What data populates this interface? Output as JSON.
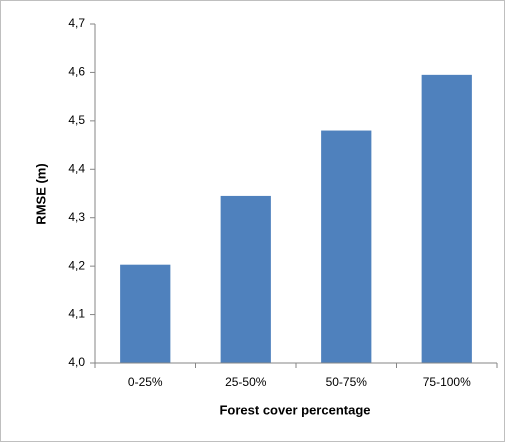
{
  "chart_data": {
    "type": "bar",
    "x_label": "Forest cover percentage",
    "y_label": "RMSE (m)",
    "categories": [
      "0-25%",
      "25-50%",
      "50-75%",
      "75-100%"
    ],
    "values": [
      4.203,
      4.345,
      4.48,
      4.595
    ],
    "color": "#4f81bd",
    "ylim": [
      4.0,
      4.7
    ],
    "yticks": [
      {
        "value": 4.0,
        "label": "4,0"
      },
      {
        "value": 4.1,
        "label": "4,1"
      },
      {
        "value": 4.2,
        "label": "4,2"
      },
      {
        "value": 4.3,
        "label": "4,3"
      },
      {
        "value": 4.4,
        "label": "4,4"
      },
      {
        "value": 4.5,
        "label": "4,5"
      },
      {
        "value": 4.6,
        "label": "4,6"
      },
      {
        "value": 4.7,
        "label": "4,7"
      }
    ],
    "grid": false
  }
}
